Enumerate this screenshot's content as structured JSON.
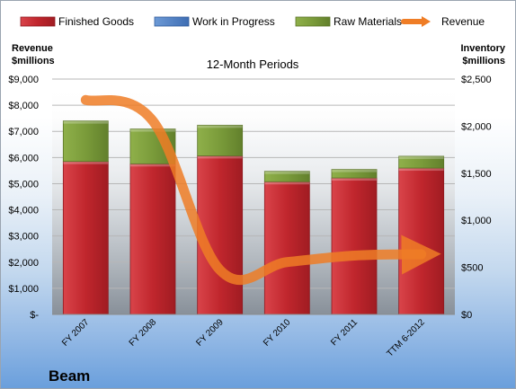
{
  "chart_data": {
    "type": "bar",
    "subtitle": "12-Month Periods",
    "company": "Beam",
    "ylabel_left": [
      "Revenue",
      "$millions"
    ],
    "ylabel_right": [
      "Inventory",
      "$millions"
    ],
    "categories": [
      "FY 2007",
      "FY 2008",
      "FY 2009",
      "FY 2010",
      "FY 2011",
      "TTM 6-2012"
    ],
    "left_axis": {
      "range": [
        0,
        9000
      ],
      "ticks": [
        0,
        1000,
        2000,
        3000,
        4000,
        5000,
        6000,
        7000,
        8000,
        9000
      ],
      "tick_labels": [
        "$-",
        "$1,000",
        "$2,000",
        "$3,000",
        "$4,000",
        "$5,000",
        "$6,000",
        "$7,000",
        "$8,000",
        "$9,000"
      ]
    },
    "right_axis": {
      "range": [
        0,
        2500
      ],
      "ticks": [
        0,
        500,
        1000,
        1500,
        2000,
        2500
      ],
      "tick_labels": [
        "$0",
        "$500",
        "$1,000",
        "$1,500",
        "$2,000",
        "$2,500"
      ]
    },
    "grid": true,
    "legend_position": "top",
    "series": [
      {
        "name": "Finished Goods",
        "type": "bar",
        "stack": "inventory",
        "axis": "right",
        "color": "#c0262d",
        "values": [
          1625,
          1600,
          1685,
          1410,
          1450,
          1555
        ]
      },
      {
        "name": "Work in Progress",
        "type": "bar",
        "stack": "inventory",
        "axis": "right",
        "color": "#4a7cc4",
        "values": [
          0,
          0,
          0,
          0,
          0,
          0
        ]
      },
      {
        "name": "Raw Materials",
        "type": "bar",
        "stack": "inventory",
        "axis": "right",
        "color": "#7a9b3a",
        "values": [
          430,
          370,
          325,
          110,
          90,
          125
        ]
      },
      {
        "name": "Revenue",
        "type": "line",
        "axis": "left",
        "color": "#ef7d26",
        "values": [
          8200,
          7400,
          1700,
          2000,
          2250,
          2300
        ]
      }
    ]
  }
}
